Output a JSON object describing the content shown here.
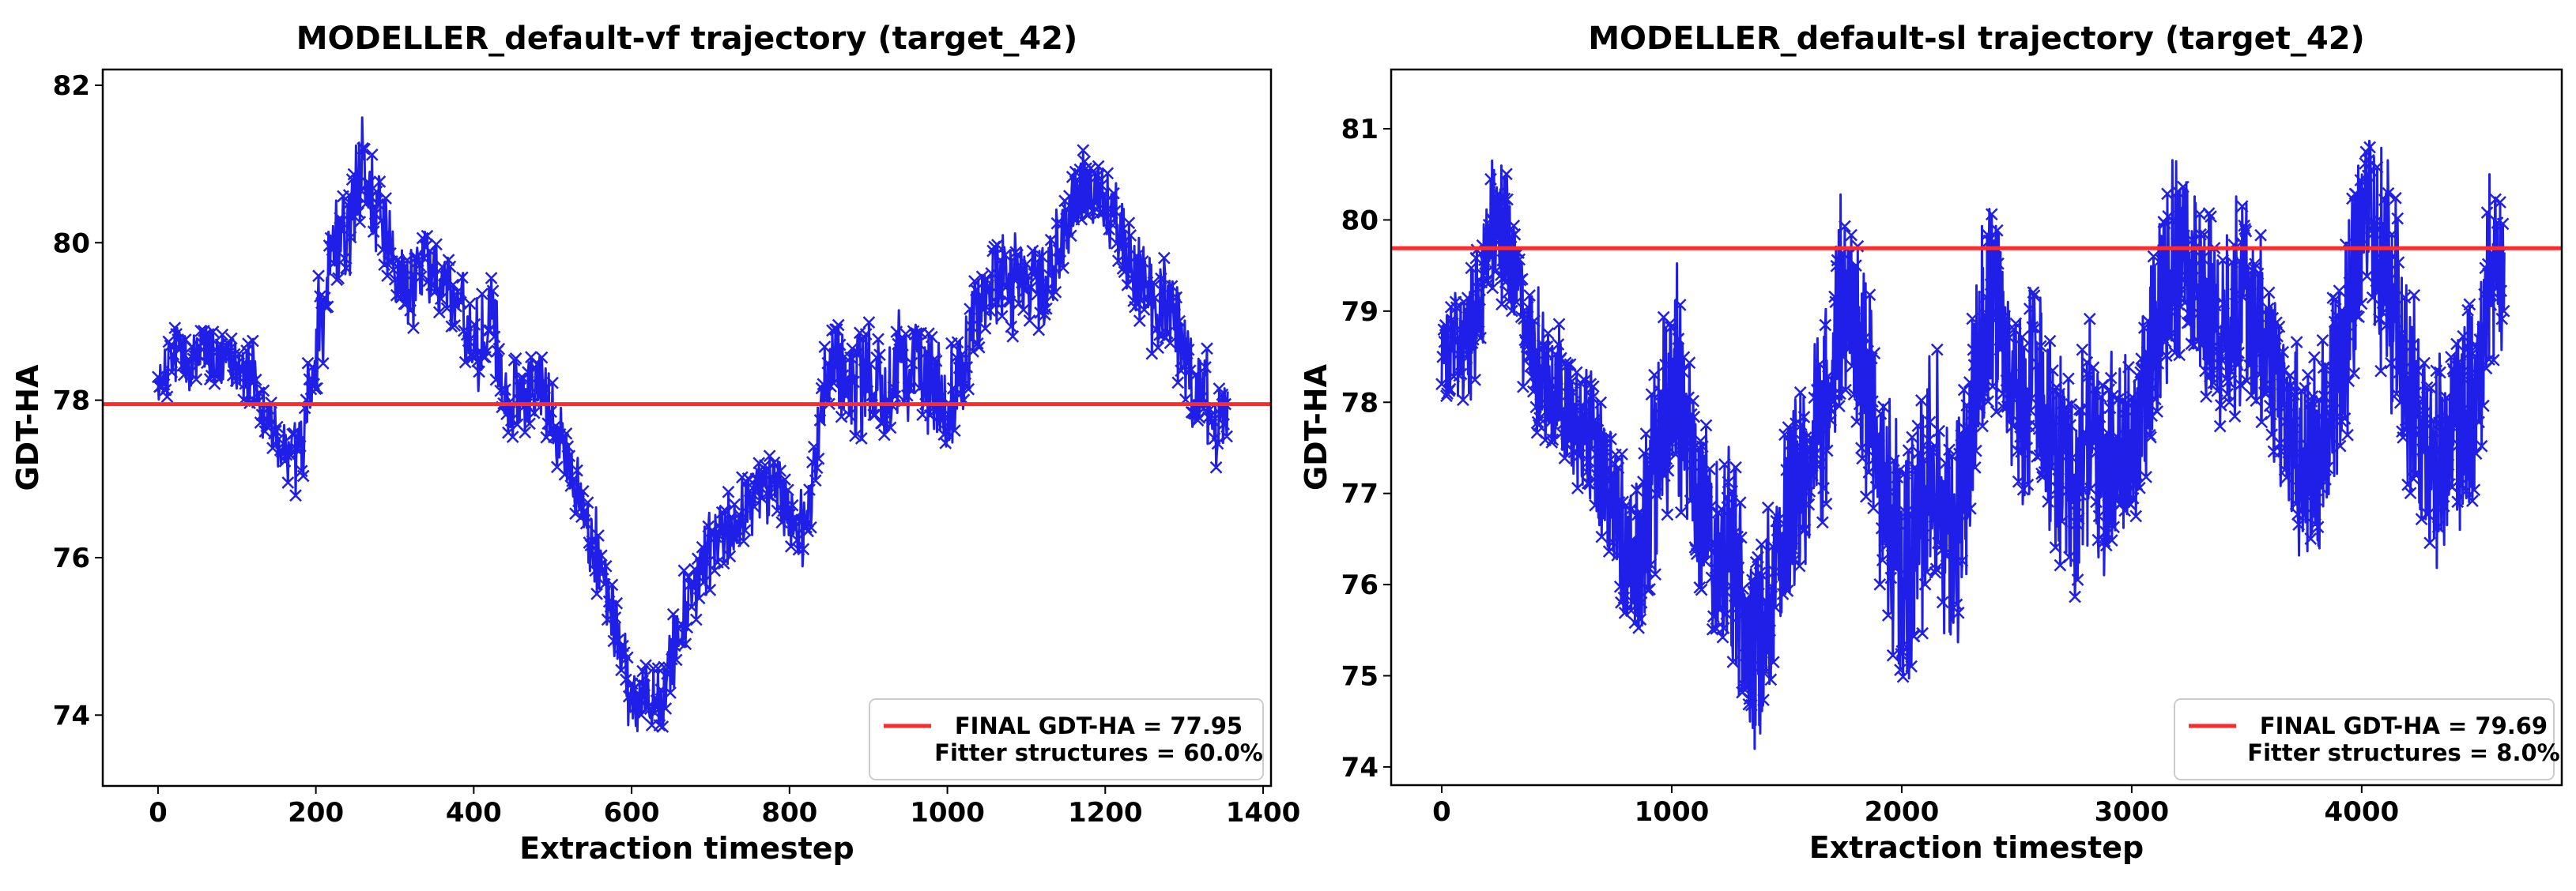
{
  "chart_data": [
    {
      "type": "line",
      "title": "MODELLER_default-vf trajectory (target_42)",
      "xlabel": "Extraction timestep",
      "ylabel": "GDT-HA",
      "xlim": [
        -70,
        1410
      ],
      "ylim": [
        73.1,
        82.2
      ],
      "xticks": [
        0,
        200,
        400,
        600,
        800,
        1000,
        1200,
        1400
      ],
      "yticks": [
        74,
        76,
        78,
        80,
        82
      ],
      "grid": false,
      "legend_position": "bottom-right",
      "colors": {
        "series": "#1f1fe8",
        "reference": "#ff2a2a"
      },
      "series": [
        {
          "name": "GDT-HA trajectory",
          "marker": "x",
          "x": [
            0,
            20,
            40,
            60,
            80,
            100,
            120,
            140,
            160,
            180,
            200,
            220,
            240,
            260,
            280,
            300,
            320,
            340,
            360,
            380,
            400,
            420,
            440,
            460,
            480,
            500,
            520,
            540,
            560,
            580,
            600,
            620,
            640,
            660,
            680,
            700,
            720,
            740,
            760,
            780,
            800,
            820,
            840,
            860,
            880,
            900,
            920,
            940,
            960,
            980,
            1000,
            1020,
            1040,
            1060,
            1080,
            1100,
            1120,
            1140,
            1160,
            1180,
            1200,
            1220,
            1240,
            1260,
            1280,
            1300,
            1320,
            1340,
            1355
          ],
          "y": [
            78.1,
            78.6,
            78.4,
            78.7,
            78.5,
            78.4,
            78.3,
            77.8,
            77.3,
            77.2,
            78.5,
            79.9,
            80.1,
            80.9,
            80.4,
            79.7,
            79.4,
            79.8,
            79.6,
            79.2,
            78.6,
            79.2,
            78.1,
            78.0,
            78.2,
            77.9,
            77.2,
            76.5,
            75.9,
            75.1,
            74.2,
            74.3,
            74.2,
            75.1,
            75.6,
            76.1,
            76.3,
            76.6,
            76.8,
            76.9,
            76.6,
            76.3,
            77.9,
            78.6,
            78.1,
            78.4,
            78.2,
            78.6,
            78.4,
            78.1,
            77.9,
            78.5,
            79.2,
            79.5,
            79.4,
            79.5,
            79.3,
            79.9,
            80.6,
            80.7,
            80.4,
            80.2,
            79.5,
            79.2,
            79.3,
            78.6,
            78.2,
            77.7,
            77.8
          ],
          "spread": [
            0.45,
            0.5,
            0.45,
            0.45,
            0.4,
            0.4,
            0.5,
            0.55,
            0.55,
            0.6,
            0.9,
            0.8,
            0.8,
            0.9,
            0.7,
            0.6,
            0.6,
            0.6,
            0.6,
            0.6,
            0.8,
            0.7,
            0.6,
            0.6,
            0.6,
            0.6,
            0.6,
            0.6,
            0.6,
            0.6,
            0.6,
            0.5,
            0.5,
            0.6,
            0.6,
            0.6,
            0.6,
            0.6,
            0.6,
            0.6,
            0.6,
            0.6,
            0.8,
            0.7,
            0.8,
            0.9,
            0.8,
            0.9,
            0.7,
            0.8,
            0.8,
            0.7,
            0.8,
            0.7,
            0.8,
            0.7,
            0.7,
            0.7,
            0.6,
            0.5,
            0.6,
            0.6,
            0.7,
            0.7,
            0.7,
            0.7,
            0.8,
            0.6,
            0.5
          ]
        }
      ],
      "reference_line": {
        "y": 77.95
      },
      "legend": [
        "FINAL GDT-HA = 77.95",
        "Fitter structures = 60.0%"
      ]
    },
    {
      "type": "line",
      "title": "MODELLER_default-sl trajectory (target_42)",
      "xlabel": "Extraction timestep",
      "ylabel": "GDT-HA",
      "xlim": [
        -220,
        4870
      ],
      "ylim": [
        73.8,
        81.65
      ],
      "xticks": [
        0,
        1000,
        2000,
        3000,
        4000
      ],
      "yticks": [
        74,
        75,
        76,
        77,
        78,
        79,
        80,
        81
      ],
      "grid": false,
      "legend_position": "bottom-right",
      "colors": {
        "series": "#1f1fe8",
        "reference": "#ff2a2a"
      },
      "series": [
        {
          "name": "GDT-HA trajectory",
          "marker": "x",
          "x": [
            0,
            60,
            120,
            180,
            240,
            300,
            360,
            420,
            480,
            540,
            600,
            660,
            720,
            780,
            840,
            900,
            960,
            1020,
            1080,
            1140,
            1200,
            1260,
            1320,
            1380,
            1440,
            1500,
            1560,
            1620,
            1680,
            1740,
            1800,
            1860,
            1920,
            1980,
            2040,
            2100,
            2160,
            2220,
            2280,
            2340,
            2400,
            2460,
            2520,
            2580,
            2640,
            2700,
            2760,
            2820,
            2880,
            2940,
            3000,
            3060,
            3120,
            3180,
            3240,
            3300,
            3360,
            3420,
            3480,
            3540,
            3600,
            3660,
            3720,
            3780,
            3840,
            3900,
            3960,
            4020,
            4080,
            4140,
            4200,
            4260,
            4320,
            4380,
            4440,
            4500,
            4560,
            4620
          ],
          "y": [
            78.5,
            78.6,
            78.7,
            79.4,
            80.1,
            79.8,
            78.7,
            78.4,
            78.2,
            78.0,
            77.7,
            77.4,
            77.0,
            76.6,
            76.1,
            76.7,
            77.6,
            78.3,
            77.3,
            76.7,
            76.4,
            76.2,
            75.6,
            75.2,
            76.0,
            76.7,
            77.3,
            77.5,
            78.1,
            79.1,
            78.8,
            77.9,
            77.0,
            76.4,
            76.0,
            77.2,
            77.1,
            76.2,
            77.4,
            78.6,
            79.3,
            78.3,
            78.0,
            78.4,
            77.8,
            77.4,
            76.9,
            77.8,
            77.2,
            77.5,
            77.6,
            78.1,
            79.0,
            79.6,
            79.7,
            79.2,
            78.7,
            78.9,
            79.1,
            78.8,
            78.3,
            78.1,
            77.4,
            77.3,
            77.6,
            78.4,
            79.2,
            80.1,
            79.7,
            79.0,
            78.2,
            77.6,
            77.1,
            77.6,
            77.8,
            78.2,
            79.4,
            79.3
          ],
          "spread": [
            0.7,
            0.7,
            0.8,
            0.8,
            1.0,
            0.9,
            0.8,
            0.9,
            0.8,
            0.8,
            0.9,
            0.9,
            1.0,
            1.0,
            1.2,
            1.4,
            1.6,
            1.4,
            1.2,
            1.3,
            1.3,
            1.4,
            1.4,
            1.4,
            1.3,
            1.4,
            1.4,
            1.3,
            1.3,
            1.3,
            1.4,
            1.4,
            1.5,
            1.6,
            1.6,
            1.6,
            1.6,
            1.5,
            1.6,
            1.5,
            1.4,
            1.4,
            1.5,
            1.5,
            1.4,
            1.4,
            1.4,
            1.4,
            1.4,
            1.3,
            1.3,
            1.3,
            1.4,
            1.3,
            1.2,
            1.3,
            1.3,
            1.3,
            1.3,
            1.3,
            1.3,
            1.3,
            1.3,
            1.3,
            1.3,
            1.4,
            1.4,
            1.3,
            1.4,
            1.4,
            1.4,
            1.4,
            1.4,
            1.4,
            1.3,
            1.3,
            1.2,
            1.0
          ]
        }
      ],
      "reference_line": {
        "y": 79.69
      },
      "legend": [
        "FINAL GDT-HA = 79.69",
        "Fitter structures = 8.0%"
      ]
    }
  ]
}
